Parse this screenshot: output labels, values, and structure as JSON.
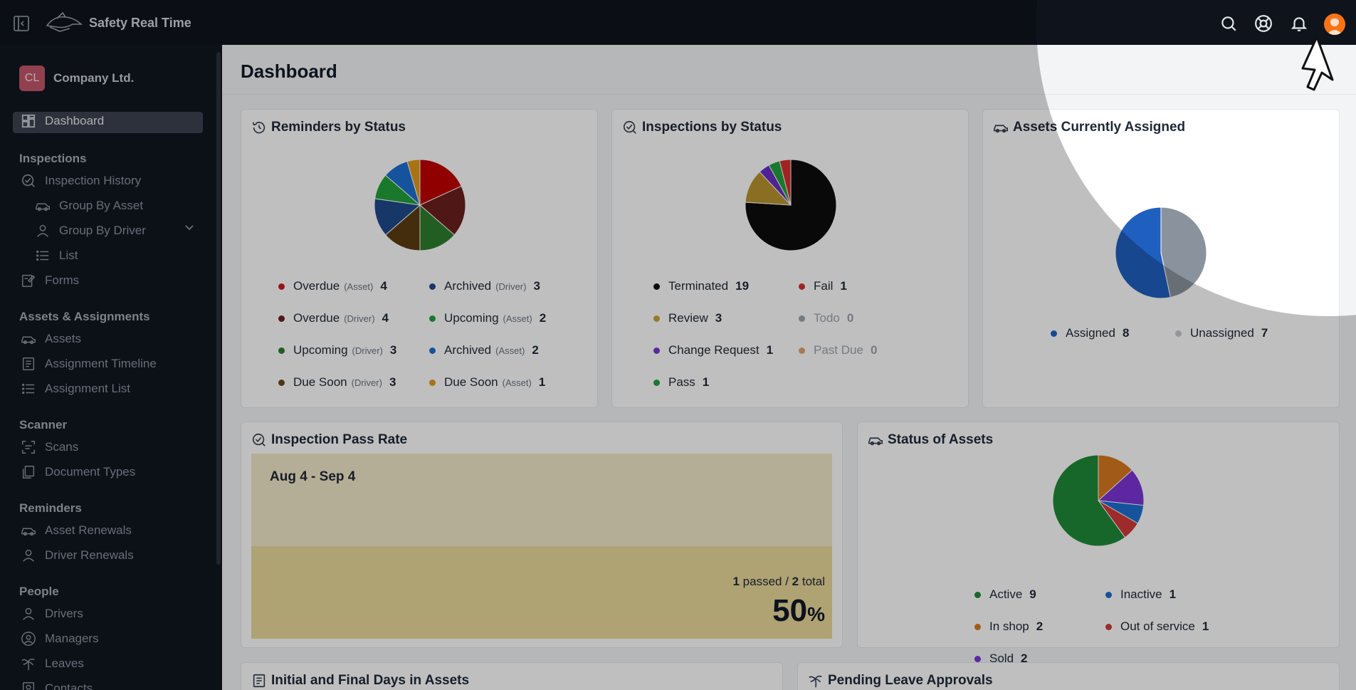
{
  "app": {
    "title": "Safety Real Time"
  },
  "company": {
    "initials": "CL",
    "name": "Company Ltd."
  },
  "sidebar": {
    "dashboard": "Dashboard",
    "sections": {
      "inspections": "Inspections",
      "assets": "Assets & Assignments",
      "scanner": "Scanner",
      "reminders": "Reminders",
      "people": "People"
    },
    "items": {
      "inspection_history": "Inspection History",
      "group_by_asset": "Group By Asset",
      "group_by_driver": "Group By Driver",
      "list": "List",
      "forms": "Forms",
      "assets": "Assets",
      "assignment_timeline": "Assignment Timeline",
      "assignment_list": "Assignment List",
      "scans": "Scans",
      "document_types": "Document Types",
      "asset_renewals": "Asset Renewals",
      "driver_renewals": "Driver Renewals",
      "drivers": "Drivers",
      "managers": "Managers",
      "leaves": "Leaves",
      "contacts": "Contacts"
    }
  },
  "page": {
    "title": "Dashboard"
  },
  "cards": {
    "reminders": {
      "title": "Reminders by Status",
      "legend": [
        {
          "label": "Overdue",
          "sub": "(Asset)",
          "count": "4",
          "color": "#c81e1e"
        },
        {
          "label": "Archived",
          "sub": "(Driver)",
          "count": "3",
          "color": "#1e4a8a"
        },
        {
          "label": "Overdue",
          "sub": "(Driver)",
          "count": "4",
          "color": "#6b1f1f"
        },
        {
          "label": "Upcoming",
          "sub": "(Asset)",
          "count": "2",
          "color": "#22a03a"
        },
        {
          "label": "Upcoming",
          "sub": "(Driver)",
          "count": "3",
          "color": "#2e7d2e"
        },
        {
          "label": "Archived",
          "sub": "(Asset)",
          "count": "2",
          "color": "#1d6fd1"
        },
        {
          "label": "Due Soon",
          "sub": "(Driver)",
          "count": "3",
          "color": "#6b4a1b"
        },
        {
          "label": "Due Soon",
          "sub": "(Asset)",
          "count": "1",
          "color": "#e09a1a"
        }
      ]
    },
    "inspections": {
      "title": "Inspections by Status",
      "legend": [
        {
          "label": "Terminated",
          "count": "19",
          "color": "#111111"
        },
        {
          "label": "Fail",
          "count": "1",
          "color": "#d62f2f"
        },
        {
          "label": "Review",
          "count": "3",
          "color": "#c9a23a"
        },
        {
          "label": "Todo",
          "count": "0",
          "color": "#9ca3af"
        },
        {
          "label": "Change Request",
          "count": "1",
          "color": "#7b35d6"
        },
        {
          "label": "Past Due",
          "count": "0",
          "color": "#e0a36f"
        },
        {
          "label": "Pass",
          "count": "1",
          "color": "#22a03a"
        }
      ]
    },
    "assigned": {
      "title": "Assets Currently Assigned",
      "legend": [
        {
          "label": "Assigned",
          "count": "8",
          "color": "#1f5fbf"
        },
        {
          "label": "Unassigned",
          "count": "7",
          "color": "#c4c9cf"
        }
      ]
    },
    "pass_rate": {
      "title": "Inspection Pass Rate",
      "range": "Aug 4 - Sep 4",
      "passed": "1",
      "passed_label": "passed /",
      "total": "2",
      "total_label": "total",
      "percent": "50",
      "percent_sign": "%"
    },
    "status_assets": {
      "title": "Status of Assets",
      "legend": [
        {
          "label": "Active",
          "count": "9",
          "color": "#1f8a3a"
        },
        {
          "label": "Inactive",
          "count": "1",
          "color": "#1d6fd1"
        },
        {
          "label": "In shop",
          "count": "2",
          "color": "#d97a1f"
        },
        {
          "label": "Out of service",
          "count": "1",
          "color": "#d23a3a"
        },
        {
          "label": "Sold",
          "count": "2",
          "color": "#7b35d6"
        }
      ]
    },
    "initial_final": {
      "title": "Initial and Final Days in Assets"
    },
    "pending_leave": {
      "title": "Pending Leave Approvals"
    }
  },
  "chart_data": [
    {
      "type": "pie",
      "title": "Reminders by Status",
      "categories": [
        "Overdue (Asset)",
        "Overdue (Driver)",
        "Upcoming (Driver)",
        "Due Soon (Driver)",
        "Archived (Driver)",
        "Upcoming (Asset)",
        "Archived (Asset)",
        "Due Soon (Asset)"
      ],
      "values": [
        4,
        4,
        3,
        3,
        3,
        2,
        2,
        1
      ],
      "colors": [
        "#c00000",
        "#6b1f1f",
        "#2e7d2e",
        "#5a3d12",
        "#1e4a8a",
        "#22a03a",
        "#1d6fd1",
        "#e09a1a"
      ]
    },
    {
      "type": "pie",
      "title": "Inspections by Status",
      "categories": [
        "Terminated",
        "Review",
        "Change Request",
        "Pass",
        "Fail"
      ],
      "values": [
        19,
        3,
        1,
        1,
        1
      ],
      "colors": [
        "#0d0d0d",
        "#b8952e",
        "#6a2fc2",
        "#22a03a",
        "#d62f2f"
      ]
    },
    {
      "type": "pie",
      "title": "Assets Currently Assigned",
      "categories": [
        "Unassigned",
        "Assigned"
      ],
      "values": [
        7,
        8
      ],
      "colors": [
        "#8a939d",
        "#1f5fbf"
      ]
    },
    {
      "type": "pie",
      "title": "Status of Assets",
      "categories": [
        "In shop",
        "Sold",
        "Inactive",
        "Out of service",
        "Active"
      ],
      "values": [
        2,
        2,
        1,
        1,
        9
      ],
      "colors": [
        "#d97a1f",
        "#7b35d6",
        "#1d6fd1",
        "#d23a3a",
        "#1f8a3a"
      ]
    }
  ]
}
